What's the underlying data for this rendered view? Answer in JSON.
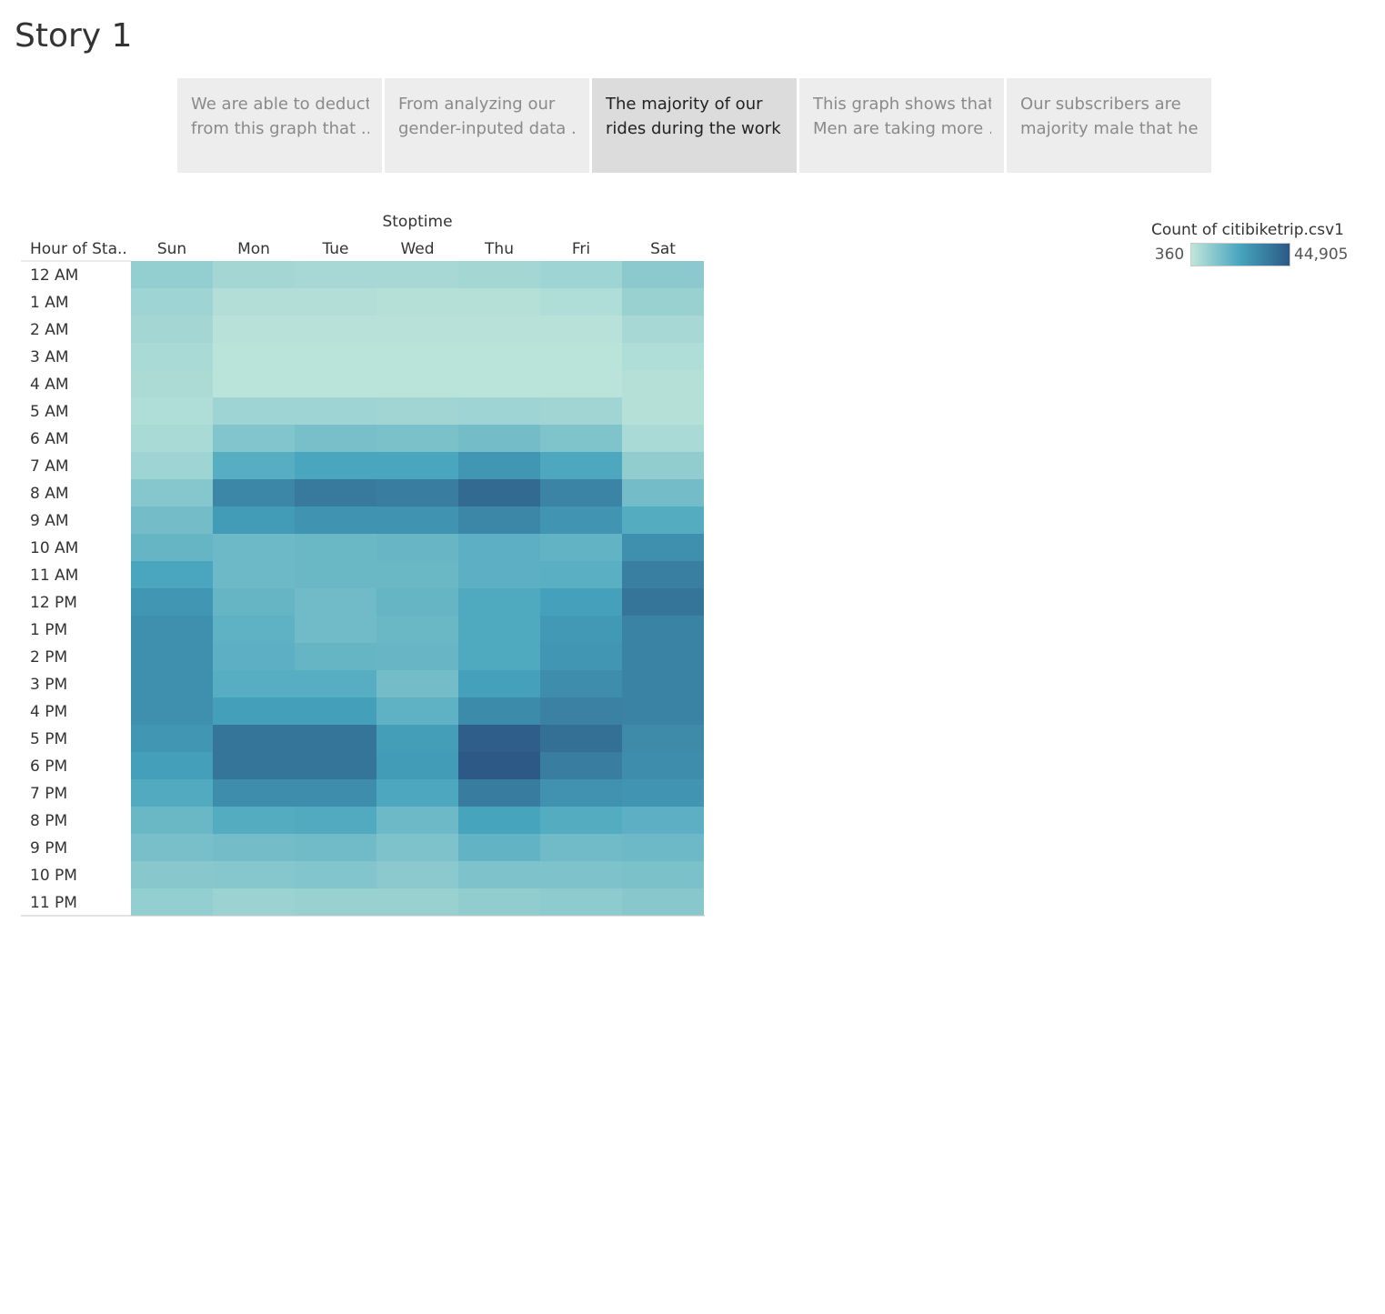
{
  "page": {
    "title": "Story 1"
  },
  "story_points": [
    {
      "lines": [
        "We are able to deduct",
        "from this graph that .."
      ],
      "active": false
    },
    {
      "lines": [
        "From analyzing our",
        "gender-inputed data .."
      ],
      "active": false
    },
    {
      "lines": [
        "The majority of our",
        "rides during the work .."
      ],
      "active": true
    },
    {
      "lines": [
        "This graph shows that",
        "Men are taking more .."
      ],
      "active": false
    },
    {
      "lines": [
        "Our subscribers are",
        "majority male that he.."
      ],
      "active": false
    }
  ],
  "legend": {
    "title": "Count of citibiketrip.csv1",
    "min_label": "360",
    "max_label": "44,905",
    "colors": [
      "#c0e6db",
      "#46a4bd",
      "#2c5985"
    ]
  },
  "chart_data": {
    "type": "heatmap",
    "title": "",
    "column_header": "Stoptime",
    "row_header": "Hour of Sta..",
    "columns": [
      "Sun",
      "Mon",
      "Tue",
      "Wed",
      "Thu",
      "Fri",
      "Sat"
    ],
    "rows": [
      "12 AM",
      "1 AM",
      "2 AM",
      "3 AM",
      "4 AM",
      "5 AM",
      "6 AM",
      "7 AM",
      "8 AM",
      "9 AM",
      "10 AM",
      "11 AM",
      "12 PM",
      "1 PM",
      "2 PM",
      "3 PM",
      "4 PM",
      "5 PM",
      "6 PM",
      "7 PM",
      "8 PM",
      "9 PM",
      "10 PM",
      "11 PM"
    ],
    "value_range": [
      360,
      44905
    ],
    "values": [
      [
        8500,
        5500,
        5000,
        5000,
        5500,
        6500,
        10000
      ],
      [
        6500,
        3000,
        3000,
        2500,
        2500,
        3500,
        7500
      ],
      [
        5500,
        2000,
        2000,
        2000,
        2000,
        2000,
        5000
      ],
      [
        4500,
        1500,
        1500,
        1500,
        1500,
        1500,
        3500
      ],
      [
        4000,
        1500,
        1500,
        1500,
        1500,
        1500,
        2500
      ],
      [
        3500,
        6500,
        6500,
        6000,
        6500,
        6000,
        2500
      ],
      [
        4500,
        11500,
        13500,
        13000,
        14500,
        12000,
        4500
      ],
      [
        6500,
        19500,
        22000,
        22000,
        26500,
        21500,
        9000
      ],
      [
        11000,
        31500,
        35000,
        34000,
        40000,
        32000,
        14500
      ],
      [
        14500,
        25000,
        27500,
        27500,
        31500,
        27000,
        20000
      ],
      [
        17000,
        15500,
        16000,
        16500,
        18500,
        17500,
        28500
      ],
      [
        22000,
        15500,
        16000,
        16000,
        18500,
        19000,
        33500
      ],
      [
        26500,
        17000,
        15000,
        17000,
        21000,
        23500,
        36500
      ],
      [
        28500,
        18000,
        15000,
        16000,
        21000,
        26000,
        32500
      ],
      [
        28500,
        18500,
        17000,
        16500,
        21000,
        26500,
        32500
      ],
      [
        28500,
        19500,
        19500,
        14500,
        23500,
        29500,
        32500
      ],
      [
        28500,
        24000,
        24000,
        18000,
        30000,
        33000,
        32500
      ],
      [
        26500,
        36500,
        36500,
        24500,
        43500,
        38000,
        30500
      ],
      [
        24000,
        36500,
        36500,
        25000,
        44905,
        34000,
        29500
      ],
      [
        20500,
        29500,
        29500,
        21500,
        34500,
        28000,
        27000
      ],
      [
        16000,
        20000,
        20500,
        15500,
        22500,
        20000,
        18500
      ],
      [
        13500,
        14500,
        15000,
        12500,
        17500,
        15000,
        15500
      ],
      [
        10500,
        11000,
        11500,
        10000,
        12500,
        12500,
        13000
      ],
      [
        8500,
        7000,
        7500,
        7500,
        9000,
        9500,
        10500
      ]
    ]
  }
}
